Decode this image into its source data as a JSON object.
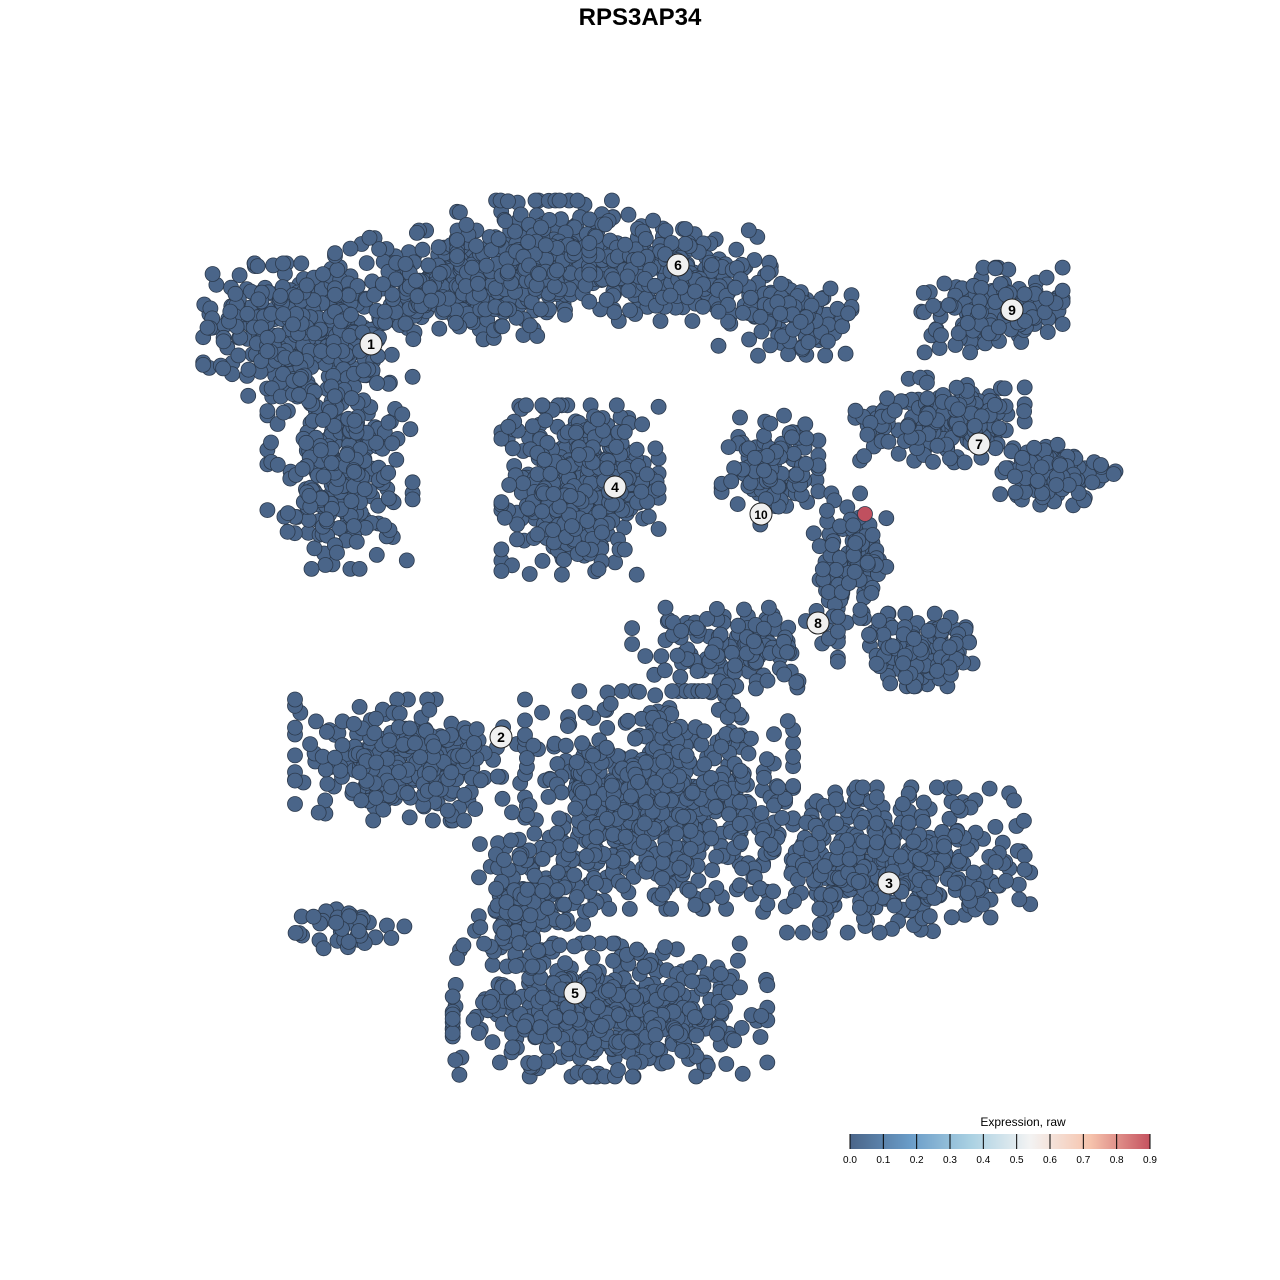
{
  "chart_data": {
    "type": "scatter",
    "title": "RPS3AP34",
    "xlabel": "",
    "ylabel": "",
    "grid": false,
    "axes_visible": false,
    "cluster_labels": [
      "1",
      "2",
      "3",
      "4",
      "5",
      "6",
      "7",
      "8",
      "9",
      "10"
    ],
    "point_expression": {
      "all_other_cells": 0.0,
      "highlighted_cell_in_cluster_7_8_region": 0.85
    },
    "colorbar": {
      "title": "Expression, raw",
      "range": [
        0.0,
        0.9
      ],
      "ticks": [
        "0.0",
        "0.1",
        "0.2",
        "0.3",
        "0.4",
        "0.5",
        "0.6",
        "0.7",
        "0.8",
        "0.9"
      ],
      "colors": [
        "#4a6589",
        "#6a9cc8",
        "#a9d0e2",
        "#f3f3f3",
        "#f6c4ad",
        "#c5525f"
      ],
      "placement": "bottom-right"
    },
    "point_color_low": "#4a6589",
    "point_color_high": "#c0505f"
  }
}
